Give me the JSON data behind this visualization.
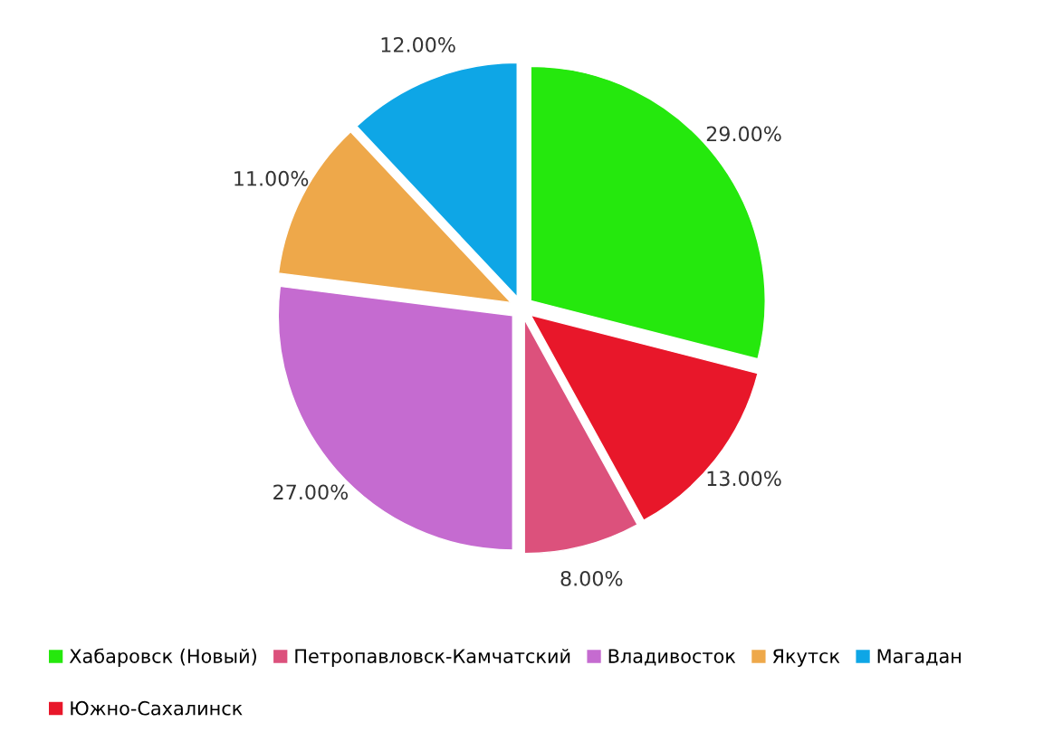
{
  "chart_data": {
    "type": "pie",
    "categories": [
      "Хабаровск (Новый)",
      "Южно-Сахалинск",
      "Петропавловск-Камчатский",
      "Владивосток",
      "Якутск",
      "Магадан"
    ],
    "values": [
      29,
      13,
      8,
      27,
      11,
      12
    ],
    "colors": [
      "#25e80d",
      "#e8172a",
      "#dc517c",
      "#c56bd0",
      "#eea84a",
      "#0ea6e6"
    ],
    "value_labels": [
      "29.00%",
      "13.00%",
      "8.00%",
      "27.00%",
      "11.00%",
      "12.00%"
    ],
    "legend": "bottom"
  }
}
